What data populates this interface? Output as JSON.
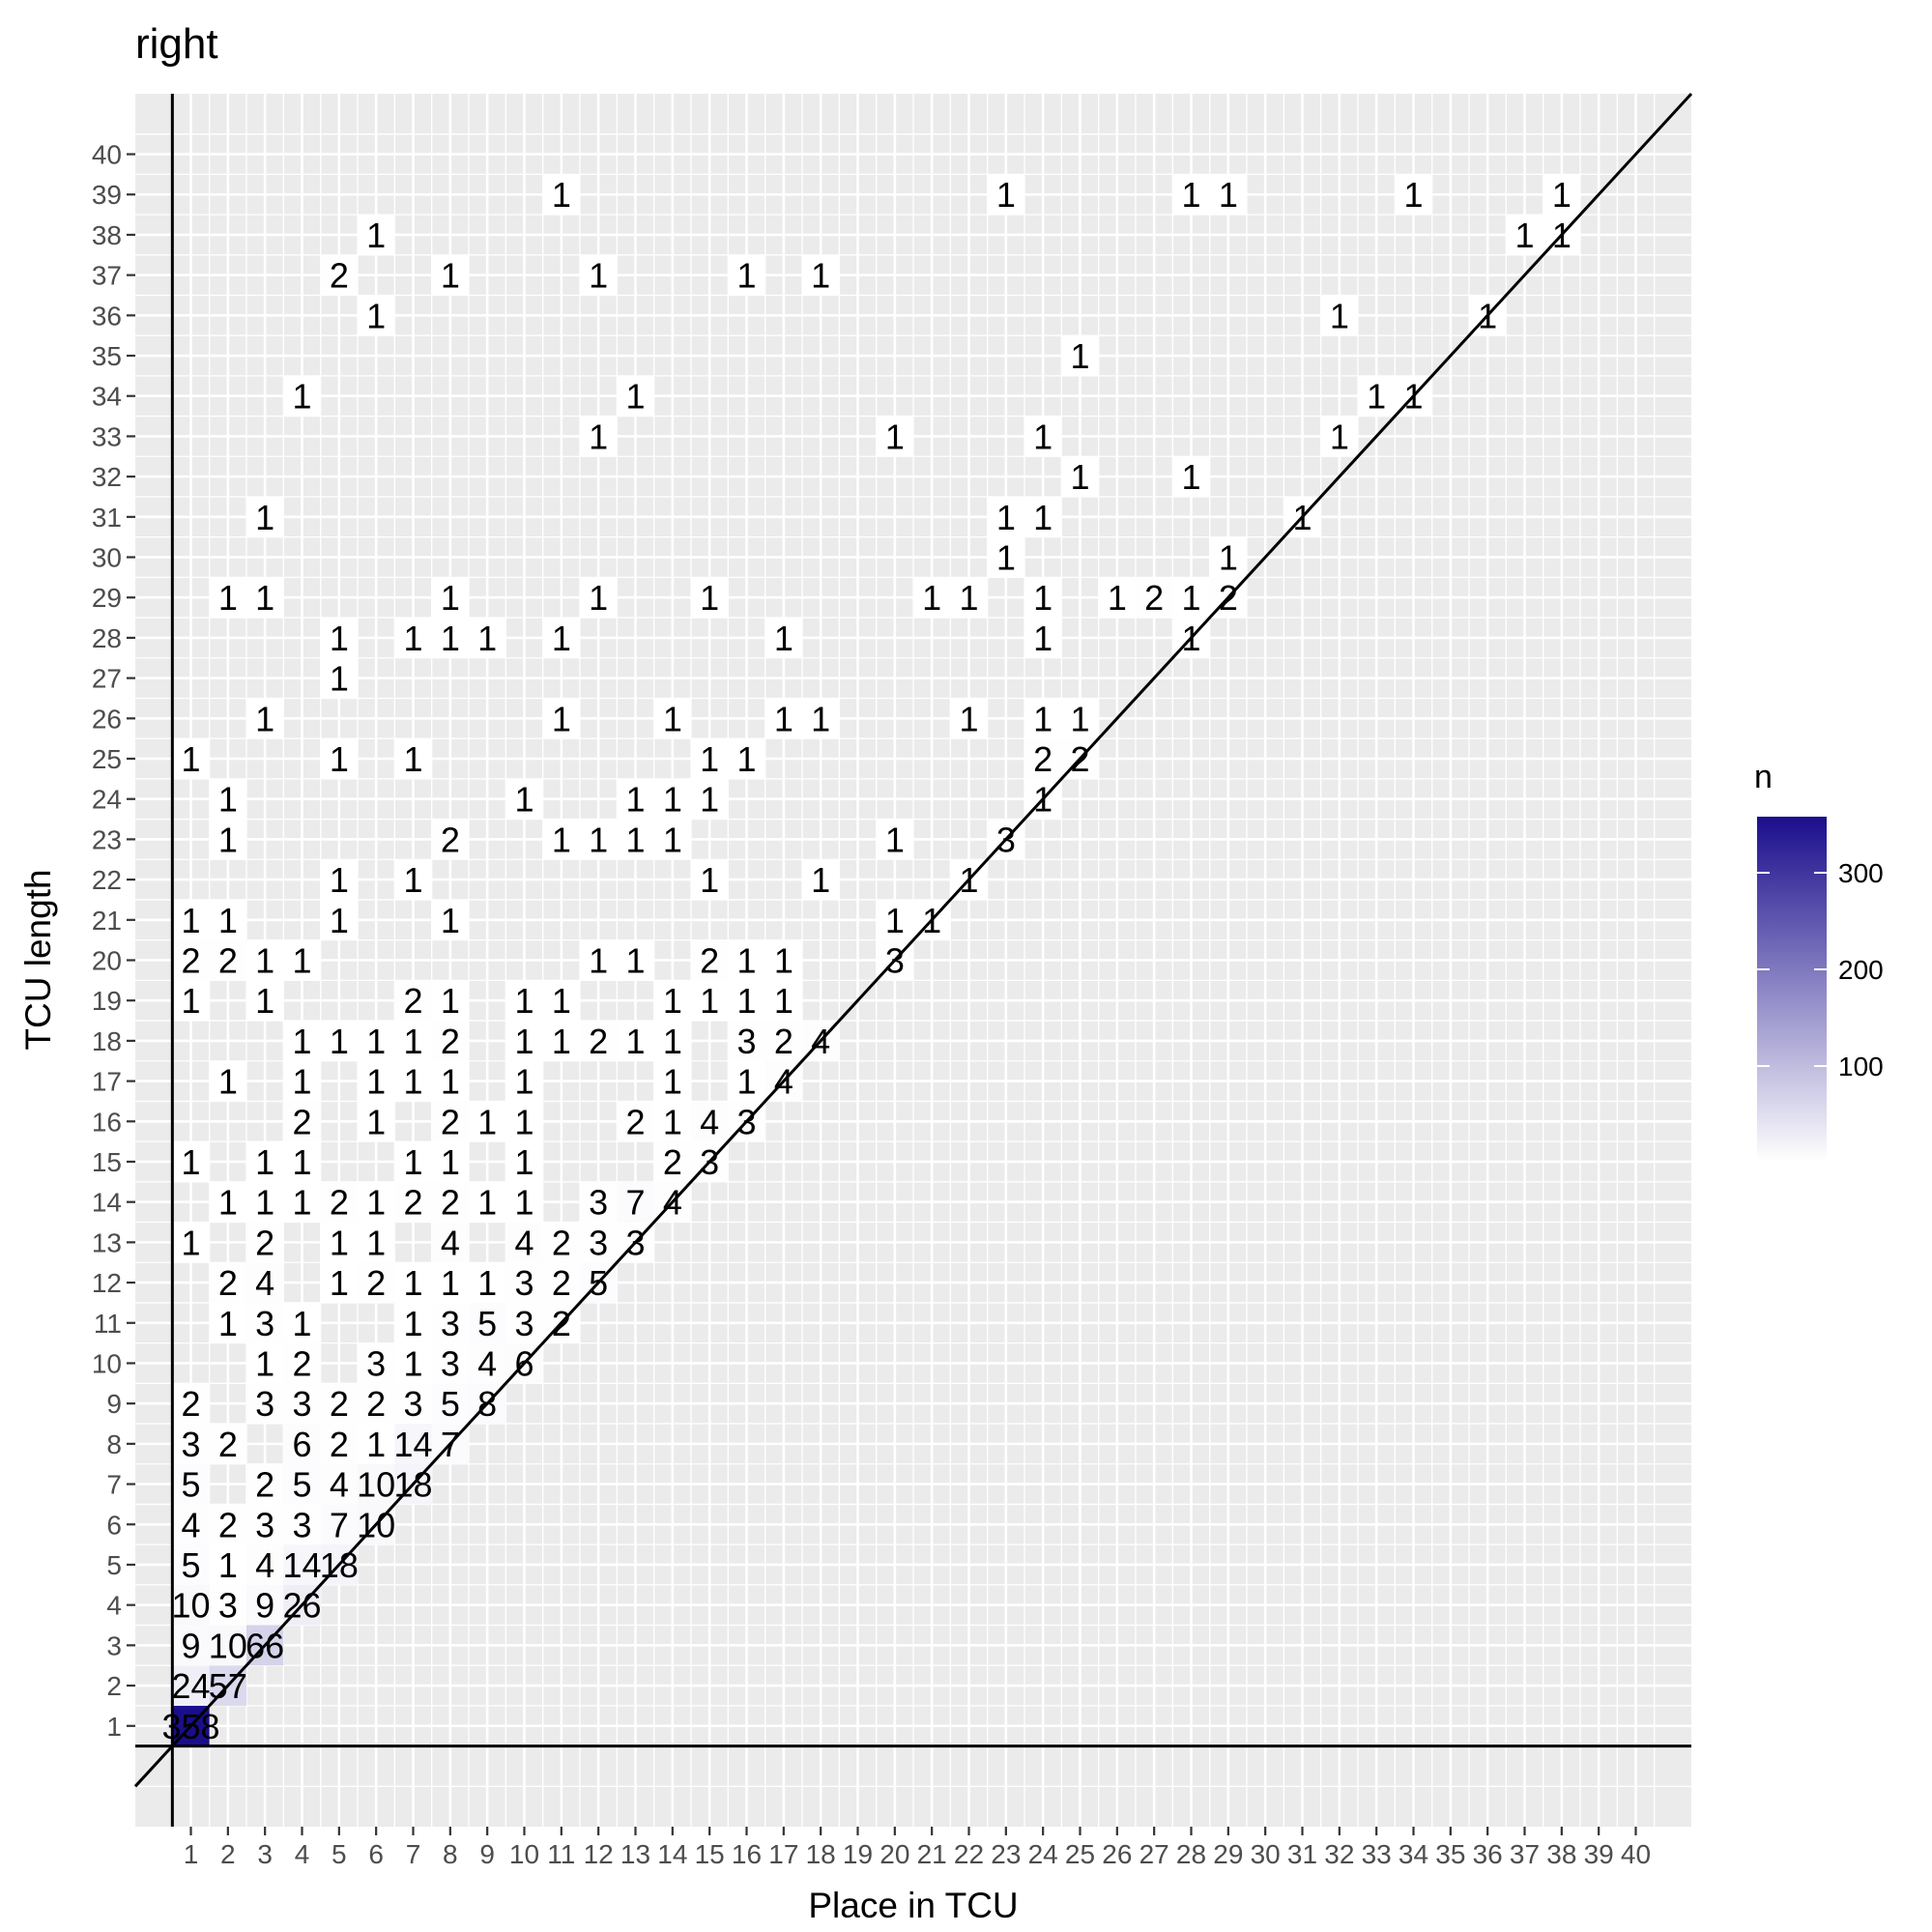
{
  "chart_data": {
    "type": "heatmap",
    "title": "right",
    "xlabel": "Place in TCU",
    "ylabel": "TCU length",
    "x_ticks": [
      "1",
      "2",
      "3",
      "4",
      "5",
      "6",
      "7",
      "8",
      "9",
      "10",
      "11",
      "12",
      "13",
      "14",
      "15",
      "16",
      "17",
      "18",
      "19",
      "20",
      "21",
      "22",
      "23",
      "24",
      "25",
      "26",
      "27",
      "28",
      "29",
      "30",
      "31",
      "32",
      "33",
      "34",
      "35",
      "36",
      "37",
      "38",
      "39",
      "40"
    ],
    "y_ticks": [
      "1",
      "2",
      "3",
      "4",
      "5",
      "6",
      "7",
      "8",
      "9",
      "10",
      "11",
      "12",
      "13",
      "14",
      "15",
      "16",
      "17",
      "18",
      "19",
      "20",
      "21",
      "22",
      "23",
      "24",
      "25",
      "26",
      "27",
      "28",
      "29",
      "30",
      "31",
      "32",
      "33",
      "34",
      "35",
      "36",
      "37",
      "38",
      "39",
      "40"
    ],
    "xlim": [
      -0.5,
      41.5
    ],
    "ylim": [
      -1.5,
      41.5
    ],
    "grid": true,
    "legend": {
      "title": "n",
      "ticks": [
        "100",
        "200",
        "300"
      ],
      "range": [
        1,
        358
      ],
      "position": "right"
    },
    "colors": {
      "low": "#FFFFFF",
      "high": "#1A0E8C"
    },
    "reference_lines": [
      {
        "type": "vline",
        "x": 0.5
      },
      {
        "type": "hline",
        "y": 0.5
      },
      {
        "type": "diagonal",
        "slope": 1,
        "intercept": 0
      }
    ],
    "cells": [
      [
        1,
        1,
        358
      ],
      [
        1,
        2,
        24
      ],
      [
        2,
        2,
        57
      ],
      [
        1,
        3,
        9
      ],
      [
        2,
        3,
        10
      ],
      [
        3,
        3,
        66
      ],
      [
        1,
        4,
        10
      ],
      [
        2,
        4,
        3
      ],
      [
        3,
        4,
        9
      ],
      [
        4,
        4,
        26
      ],
      [
        1,
        5,
        5
      ],
      [
        2,
        5,
        1
      ],
      [
        3,
        5,
        4
      ],
      [
        4,
        5,
        14
      ],
      [
        5,
        5,
        18
      ],
      [
        1,
        6,
        4
      ],
      [
        2,
        6,
        2
      ],
      [
        3,
        6,
        3
      ],
      [
        4,
        6,
        3
      ],
      [
        5,
        6,
        7
      ],
      [
        6,
        6,
        10
      ],
      [
        1,
        7,
        5
      ],
      [
        3,
        7,
        2
      ],
      [
        4,
        7,
        5
      ],
      [
        5,
        7,
        4
      ],
      [
        6,
        7,
        10
      ],
      [
        7,
        7,
        18
      ],
      [
        1,
        8,
        3
      ],
      [
        2,
        8,
        2
      ],
      [
        4,
        8,
        6
      ],
      [
        5,
        8,
        2
      ],
      [
        6,
        8,
        1
      ],
      [
        7,
        8,
        14
      ],
      [
        8,
        8,
        7
      ],
      [
        1,
        9,
        2
      ],
      [
        3,
        9,
        3
      ],
      [
        4,
        9,
        3
      ],
      [
        5,
        9,
        2
      ],
      [
        6,
        9,
        2
      ],
      [
        7,
        9,
        3
      ],
      [
        8,
        9,
        5
      ],
      [
        9,
        9,
        8
      ],
      [
        3,
        10,
        1
      ],
      [
        4,
        10,
        2
      ],
      [
        6,
        10,
        3
      ],
      [
        7,
        10,
        1
      ],
      [
        8,
        10,
        3
      ],
      [
        9,
        10,
        4
      ],
      [
        10,
        10,
        6
      ],
      [
        2,
        11,
        1
      ],
      [
        3,
        11,
        3
      ],
      [
        4,
        11,
        1
      ],
      [
        7,
        11,
        1
      ],
      [
        8,
        11,
        3
      ],
      [
        9,
        11,
        5
      ],
      [
        10,
        11,
        3
      ],
      [
        11,
        11,
        2
      ],
      [
        2,
        12,
        2
      ],
      [
        3,
        12,
        4
      ],
      [
        5,
        12,
        1
      ],
      [
        6,
        12,
        2
      ],
      [
        7,
        12,
        1
      ],
      [
        8,
        12,
        1
      ],
      [
        9,
        12,
        1
      ],
      [
        10,
        12,
        3
      ],
      [
        11,
        12,
        2
      ],
      [
        12,
        12,
        5
      ],
      [
        1,
        13,
        1
      ],
      [
        3,
        13,
        2
      ],
      [
        5,
        13,
        1
      ],
      [
        6,
        13,
        1
      ],
      [
        8,
        13,
        4
      ],
      [
        10,
        13,
        4
      ],
      [
        11,
        13,
        2
      ],
      [
        12,
        13,
        3
      ],
      [
        13,
        13,
        3
      ],
      [
        2,
        14,
        1
      ],
      [
        3,
        14,
        1
      ],
      [
        4,
        14,
        1
      ],
      [
        5,
        14,
        2
      ],
      [
        6,
        14,
        1
      ],
      [
        7,
        14,
        2
      ],
      [
        8,
        14,
        2
      ],
      [
        9,
        14,
        1
      ],
      [
        10,
        14,
        1
      ],
      [
        12,
        14,
        3
      ],
      [
        13,
        14,
        7
      ],
      [
        14,
        14,
        4
      ],
      [
        1,
        15,
        1
      ],
      [
        3,
        15,
        1
      ],
      [
        4,
        15,
        1
      ],
      [
        7,
        15,
        1
      ],
      [
        8,
        15,
        1
      ],
      [
        10,
        15,
        1
      ],
      [
        14,
        15,
        2
      ],
      [
        15,
        15,
        3
      ],
      [
        4,
        16,
        2
      ],
      [
        6,
        16,
        1
      ],
      [
        8,
        16,
        2
      ],
      [
        9,
        16,
        1
      ],
      [
        10,
        16,
        1
      ],
      [
        13,
        16,
        2
      ],
      [
        14,
        16,
        1
      ],
      [
        15,
        16,
        4
      ],
      [
        16,
        16,
        3
      ],
      [
        2,
        17,
        1
      ],
      [
        4,
        17,
        1
      ],
      [
        6,
        17,
        1
      ],
      [
        7,
        17,
        1
      ],
      [
        8,
        17,
        1
      ],
      [
        10,
        17,
        1
      ],
      [
        14,
        17,
        1
      ],
      [
        16,
        17,
        1
      ],
      [
        17,
        17,
        4
      ],
      [
        4,
        18,
        1
      ],
      [
        5,
        18,
        1
      ],
      [
        6,
        18,
        1
      ],
      [
        7,
        18,
        1
      ],
      [
        8,
        18,
        2
      ],
      [
        10,
        18,
        1
      ],
      [
        11,
        18,
        1
      ],
      [
        12,
        18,
        2
      ],
      [
        13,
        18,
        1
      ],
      [
        14,
        18,
        1
      ],
      [
        16,
        18,
        3
      ],
      [
        17,
        18,
        2
      ],
      [
        18,
        18,
        4
      ],
      [
        1,
        19,
        1
      ],
      [
        3,
        19,
        1
      ],
      [
        7,
        19,
        2
      ],
      [
        8,
        19,
        1
      ],
      [
        10,
        19,
        1
      ],
      [
        11,
        19,
        1
      ],
      [
        14,
        19,
        1
      ],
      [
        15,
        19,
        1
      ],
      [
        16,
        19,
        1
      ],
      [
        17,
        19,
        1
      ],
      [
        1,
        20,
        2
      ],
      [
        2,
        20,
        2
      ],
      [
        3,
        20,
        1
      ],
      [
        4,
        20,
        1
      ],
      [
        12,
        20,
        1
      ],
      [
        13,
        20,
        1
      ],
      [
        15,
        20,
        2
      ],
      [
        16,
        20,
        1
      ],
      [
        17,
        20,
        1
      ],
      [
        20,
        20,
        3
      ],
      [
        1,
        21,
        1
      ],
      [
        2,
        21,
        1
      ],
      [
        5,
        21,
        1
      ],
      [
        8,
        21,
        1
      ],
      [
        20,
        21,
        1
      ],
      [
        21,
        21,
        1
      ],
      [
        5,
        22,
        1
      ],
      [
        7,
        22,
        1
      ],
      [
        15,
        22,
        1
      ],
      [
        18,
        22,
        1
      ],
      [
        22,
        22,
        1
      ],
      [
        2,
        23,
        1
      ],
      [
        8,
        23,
        2
      ],
      [
        11,
        23,
        1
      ],
      [
        12,
        23,
        1
      ],
      [
        13,
        23,
        1
      ],
      [
        14,
        23,
        1
      ],
      [
        20,
        23,
        1
      ],
      [
        23,
        23,
        3
      ],
      [
        2,
        24,
        1
      ],
      [
        10,
        24,
        1
      ],
      [
        13,
        24,
        1
      ],
      [
        14,
        24,
        1
      ],
      [
        15,
        24,
        1
      ],
      [
        24,
        24,
        1
      ],
      [
        1,
        25,
        1
      ],
      [
        5,
        25,
        1
      ],
      [
        7,
        25,
        1
      ],
      [
        15,
        25,
        1
      ],
      [
        16,
        25,
        1
      ],
      [
        24,
        25,
        2
      ],
      [
        25,
        25,
        2
      ],
      [
        3,
        26,
        1
      ],
      [
        11,
        26,
        1
      ],
      [
        14,
        26,
        1
      ],
      [
        17,
        26,
        1
      ],
      [
        18,
        26,
        1
      ],
      [
        22,
        26,
        1
      ],
      [
        24,
        26,
        1
      ],
      [
        25,
        26,
        1
      ],
      [
        5,
        27,
        1
      ],
      [
        5,
        28,
        1
      ],
      [
        7,
        28,
        1
      ],
      [
        8,
        28,
        1
      ],
      [
        9,
        28,
        1
      ],
      [
        11,
        28,
        1
      ],
      [
        17,
        28,
        1
      ],
      [
        24,
        28,
        1
      ],
      [
        28,
        28,
        1
      ],
      [
        2,
        29,
        1
      ],
      [
        3,
        29,
        1
      ],
      [
        8,
        29,
        1
      ],
      [
        12,
        29,
        1
      ],
      [
        15,
        29,
        1
      ],
      [
        21,
        29,
        1
      ],
      [
        22,
        29,
        1
      ],
      [
        24,
        29,
        1
      ],
      [
        26,
        29,
        1
      ],
      [
        27,
        29,
        2
      ],
      [
        28,
        29,
        1
      ],
      [
        29,
        29,
        2
      ],
      [
        23,
        30,
        1
      ],
      [
        29,
        30,
        1
      ],
      [
        3,
        31,
        1
      ],
      [
        23,
        31,
        1
      ],
      [
        24,
        31,
        1
      ],
      [
        31,
        31,
        1
      ],
      [
        25,
        32,
        1
      ],
      [
        28,
        32,
        1
      ],
      [
        12,
        33,
        1
      ],
      [
        20,
        33,
        1
      ],
      [
        24,
        33,
        1
      ],
      [
        32,
        33,
        1
      ],
      [
        4,
        34,
        1
      ],
      [
        13,
        34,
        1
      ],
      [
        33,
        34,
        1
      ],
      [
        34,
        34,
        1
      ],
      [
        25,
        35,
        1
      ],
      [
        6,
        36,
        1
      ],
      [
        32,
        36,
        1
      ],
      [
        36,
        36,
        1
      ],
      [
        5,
        37,
        2
      ],
      [
        8,
        37,
        1
      ],
      [
        12,
        37,
        1
      ],
      [
        16,
        37,
        1
      ],
      [
        18,
        37,
        1
      ],
      [
        6,
        38,
        1
      ],
      [
        37,
        38,
        1
      ],
      [
        38,
        38,
        1
      ],
      [
        11,
        39,
        1
      ],
      [
        23,
        39,
        1
      ],
      [
        28,
        39,
        1
      ],
      [
        29,
        39,
        1
      ],
      [
        34,
        39,
        1
      ],
      [
        38,
        39,
        1
      ]
    ]
  }
}
